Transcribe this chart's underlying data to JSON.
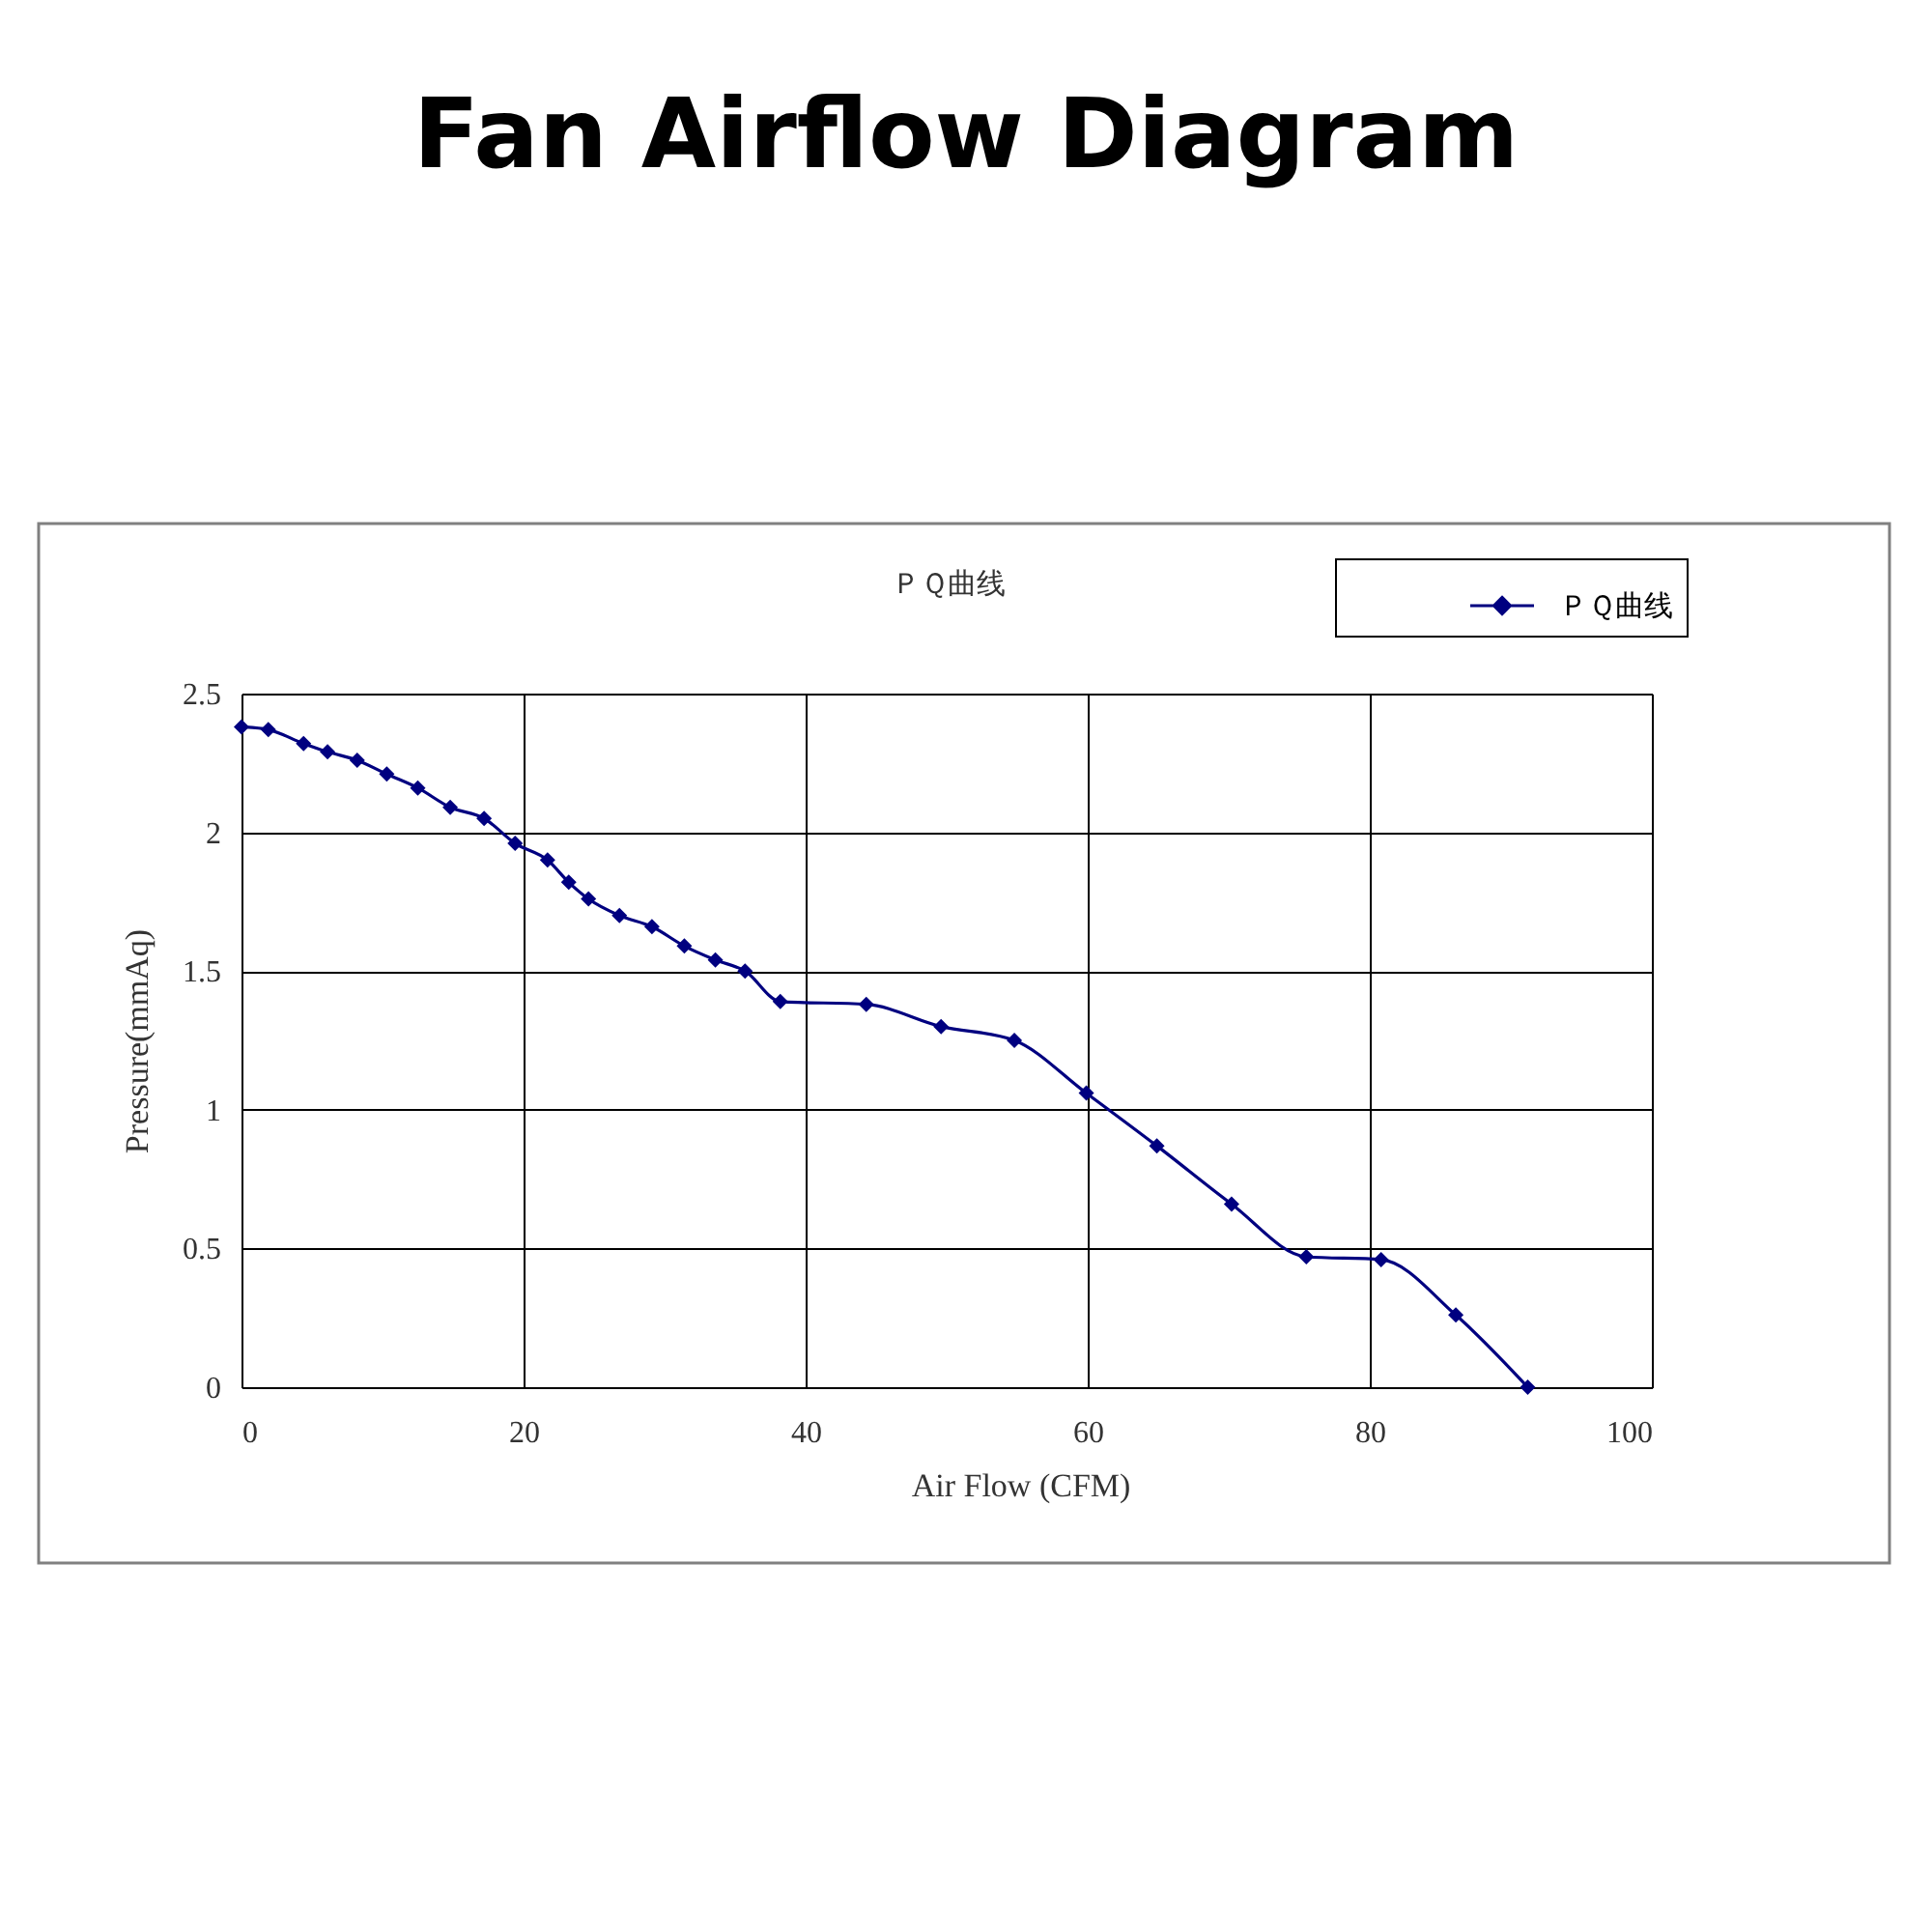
{
  "chart_data": {
    "type": "line",
    "title": "Fan Airflow Diagram",
    "subtitle": "ＰＱ曲线",
    "xlabel": "Air Flow (CFM)",
    "ylabel": "Pressure(mmAq)",
    "series": [
      {
        "name": "ＰＱ曲线",
        "color": "#000080",
        "x": [
          0,
          1.9,
          4.4,
          6.1,
          8.2,
          10.3,
          12.5,
          14.8,
          17.2,
          19.4,
          21.7,
          23.2,
          24.6,
          26.8,
          29.1,
          31.4,
          33.6,
          35.7,
          38.2,
          44.3,
          49.6,
          54.8,
          59.9,
          64.9,
          70.2,
          75.5,
          80.8,
          86.1,
          91.2
        ],
        "values": [
          2.38,
          2.37,
          2.32,
          2.29,
          2.26,
          2.21,
          2.16,
          2.09,
          2.05,
          1.96,
          1.9,
          1.82,
          1.76,
          1.7,
          1.66,
          1.59,
          1.54,
          1.5,
          1.39,
          1.38,
          1.3,
          1.25,
          1.06,
          0.87,
          0.66,
          0.47,
          0.46,
          0.26,
          0
        ]
      }
    ],
    "xlim": [
      0,
      100
    ],
    "ylim": [
      0,
      2.5
    ],
    "xticks": [
      0,
      20,
      40,
      60,
      80,
      100
    ],
    "yticks": [
      0,
      0.5,
      1,
      1.5,
      2,
      2.5
    ],
    "grid": true,
    "legend": "top right",
    "marker": "diamond",
    "line_style": "solid"
  }
}
